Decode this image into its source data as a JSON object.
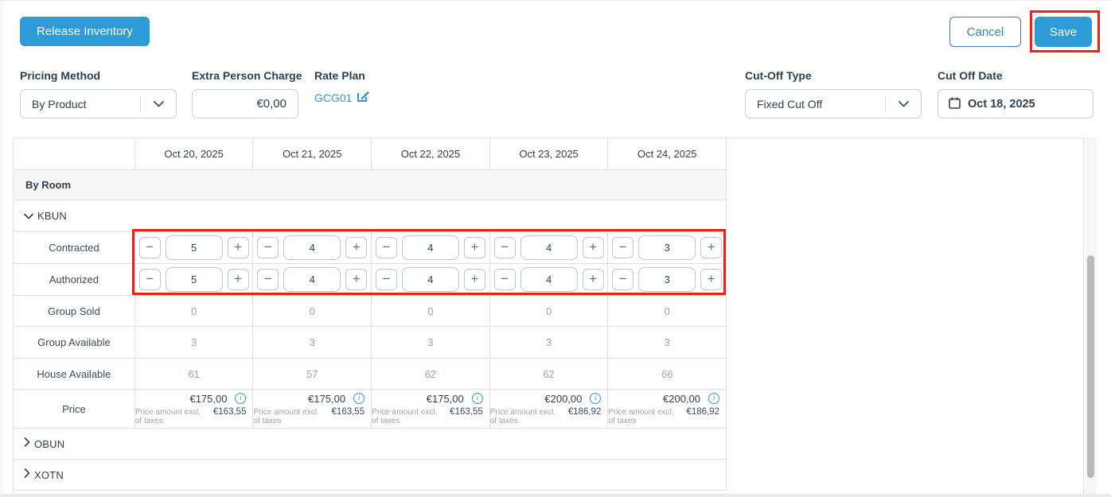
{
  "toolbar": {
    "release_inventory_label": "Release Inventory",
    "cancel_label": "Cancel",
    "save_label": "Save"
  },
  "filters": {
    "pricing_method": {
      "label": "Pricing Method",
      "value": "By Product"
    },
    "extra_person_charge": {
      "label": "Extra Person Charge",
      "value": "€0,00"
    },
    "rate_plan": {
      "label": "Rate Plan",
      "value": "GCG01"
    },
    "cut_off_type": {
      "label": "Cut-Off Type",
      "value": "Fixed Cut Off"
    },
    "cut_off_date": {
      "label": "Cut Off Date",
      "value": "Oct 18, 2025"
    }
  },
  "table": {
    "date_columns": [
      "Oct 20, 2025",
      "Oct 21, 2025",
      "Oct 22, 2025",
      "Oct 23, 2025",
      "Oct 24, 2025"
    ],
    "section_label": "By Room",
    "expanded_room": "KBUN",
    "rows": {
      "contracted": {
        "label": "Contracted",
        "values": [
          "5",
          "4",
          "4",
          "4",
          "3"
        ]
      },
      "authorized": {
        "label": "Authorized",
        "values": [
          "5",
          "4",
          "4",
          "4",
          "3"
        ]
      },
      "group_sold": {
        "label": "Group Sold",
        "values": [
          "0",
          "0",
          "0",
          "0",
          "0"
        ]
      },
      "group_available": {
        "label": "Group Available",
        "values": [
          "3",
          "3",
          "3",
          "3",
          "3"
        ]
      },
      "house_available": {
        "label": "House Available",
        "values": [
          "61",
          "57",
          "62",
          "62",
          "66"
        ]
      },
      "price": {
        "label": "Price",
        "excl_label": "Price amount excl. of taxes",
        "values": [
          {
            "amount": "€175,00",
            "excl": "€163,55"
          },
          {
            "amount": "€175,00",
            "excl": "€163,55"
          },
          {
            "amount": "€175,00",
            "excl": "€163,55"
          },
          {
            "amount": "€200,00",
            "excl": "€186,92"
          },
          {
            "amount": "€200,00",
            "excl": "€186,92"
          }
        ]
      }
    },
    "collapsed_rooms": [
      "OBUN",
      "XOTN"
    ]
  },
  "colors": {
    "accent_blue": "#2d9bd6",
    "annotation_red": "#ee2213",
    "text_dark": "#2e3f4e",
    "text_muted": "#9aa6ae",
    "grid_border": "#dfe1e3"
  }
}
